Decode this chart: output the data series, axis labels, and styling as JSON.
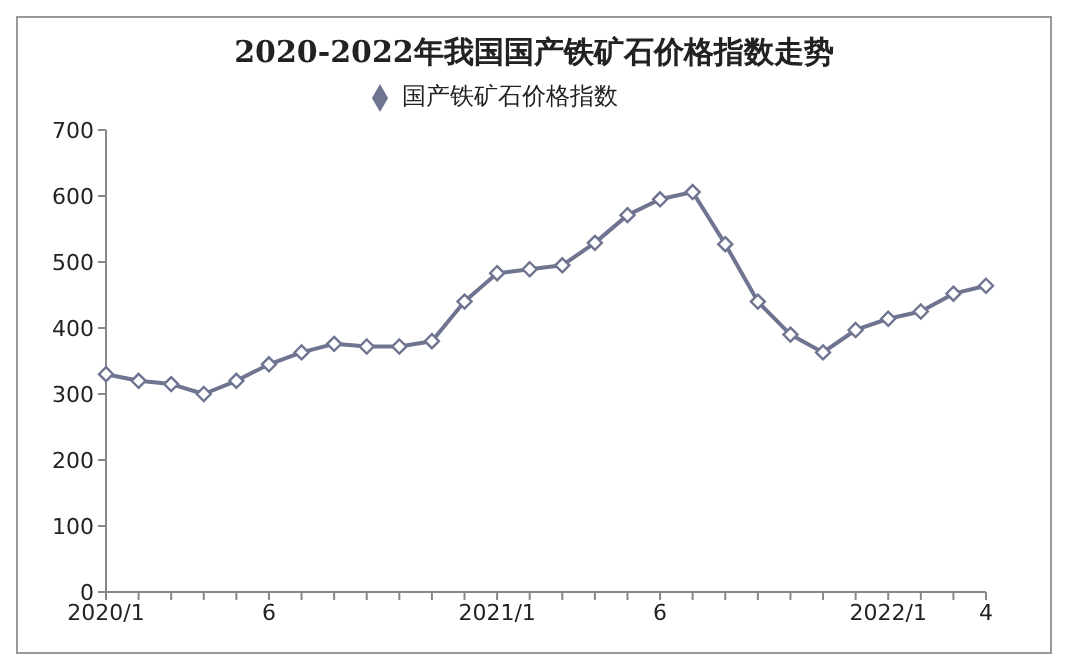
{
  "chart_data": {
    "type": "line",
    "title": "2020-2022年我国国产铁矿石价格指数走势",
    "categories": [
      "2020/1",
      null,
      null,
      null,
      null,
      "6",
      null,
      null,
      null,
      null,
      null,
      null,
      "2021/1",
      null,
      null,
      null,
      null,
      "6",
      null,
      null,
      null,
      null,
      null,
      null,
      "2022/1",
      null,
      null,
      "4"
    ],
    "series": [
      {
        "name": "国产铁矿石价格指数",
        "color": "#6f7590",
        "values": [
          330,
          320,
          315,
          300,
          320,
          345,
          363,
          376,
          372,
          372,
          380,
          440,
          483,
          489,
          495,
          529,
          571,
          595,
          606,
          527,
          440,
          390,
          363,
          397,
          414,
          425,
          452,
          464
        ]
      }
    ],
    "ylim": [
      0,
      700
    ],
    "yticks": [
      0,
      100,
      200,
      300,
      400,
      500,
      600,
      700
    ],
    "grid": false,
    "legend": "top",
    "marker": "diamond",
    "line_style": "solid"
  }
}
